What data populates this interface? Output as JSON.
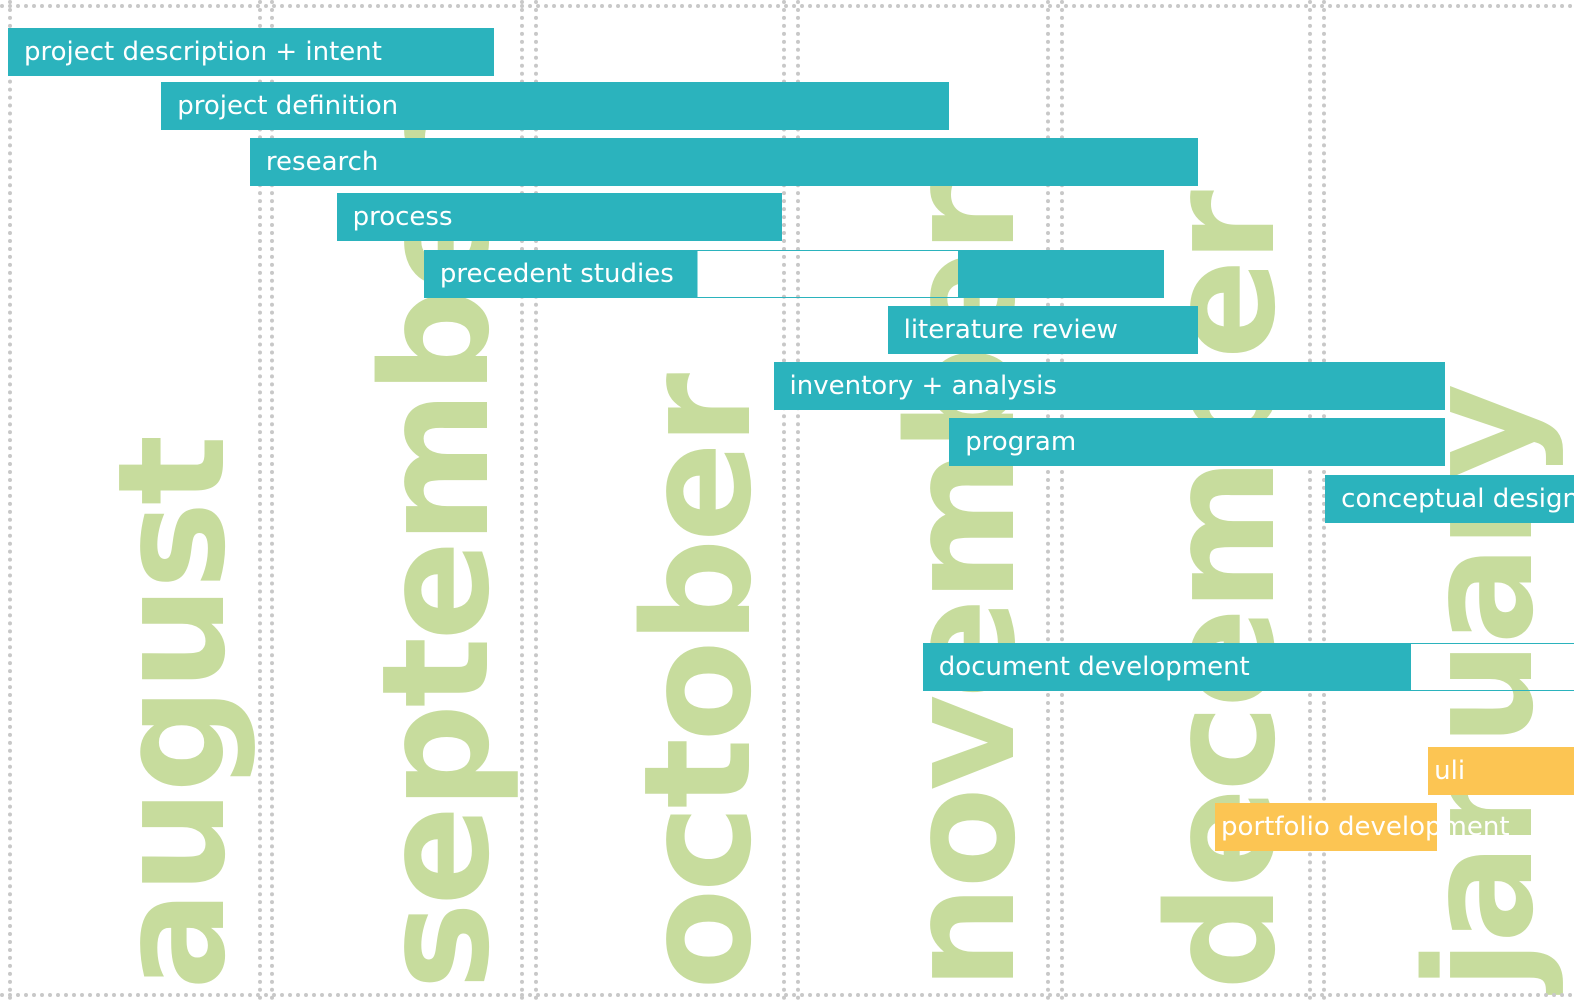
{
  "chart_data": {
    "type": "gantt",
    "months": [
      "august",
      "september",
      "october",
      "november",
      "december",
      "january"
    ],
    "colors": {
      "task": "#2bb3bd",
      "milestone": "#fcc553",
      "month_label": "#c7dc9d",
      "gridline": "#c8c8c8",
      "label_text": "#ffffff"
    },
    "tasks": [
      {
        "label": "project description + intent",
        "start": "Aug 1",
        "end": "Sep 27",
        "color": "task"
      },
      {
        "label": "project definition",
        "start": "Aug 20",
        "end": "Nov 19",
        "color": "task"
      },
      {
        "label": "research",
        "start": "Aug 31",
        "end": "Dec 18",
        "color": "task"
      },
      {
        "label": "process",
        "start": "Sep 10",
        "end": "Oct 31",
        "color": "task"
      },
      {
        "label": "precedent studies",
        "start": "Sep 20",
        "end": "Dec 14",
        "color": "task",
        "outline_start": "Oct 22",
        "outline_end": "Nov 20"
      },
      {
        "label": "literature review",
        "start": "Nov 13",
        "end": "Dec 18",
        "color": "task"
      },
      {
        "label": "inventory + analysis",
        "start": "Oct 31",
        "end": "Jan 16",
        "color": "task"
      },
      {
        "label": "program",
        "start": "Nov 20",
        "end": "Jan 16",
        "color": "task"
      },
      {
        "label": "conceptual design",
        "start": "Jan 3",
        "end": "Jan 31",
        "color": "task"
      },
      {
        "label": "document development",
        "start": "Nov 17",
        "end": "Jan 12",
        "color": "task",
        "outline_start": "Jan 12",
        "outline_end": "Jan 31"
      },
      {
        "label": "uli",
        "start": "Jan 15",
        "end": "Jan 31",
        "color": "milestone"
      },
      {
        "label": "portfolio development",
        "start": "Dec 21",
        "end": "Jan 15",
        "color": "milestone"
      }
    ]
  }
}
